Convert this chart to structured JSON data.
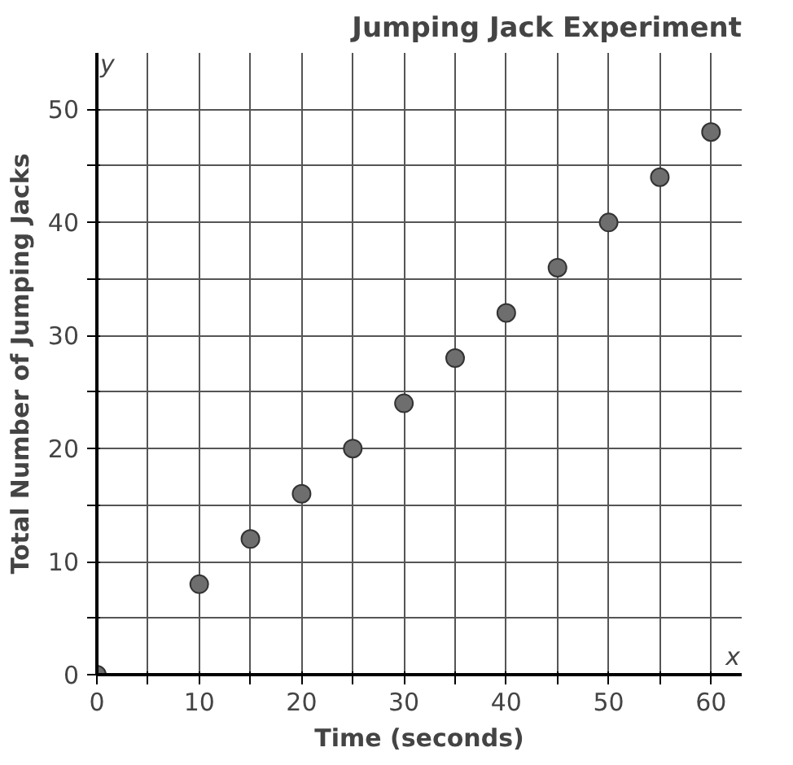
{
  "chart_data": {
    "type": "scatter",
    "title": "Jumping Jack Experiment",
    "xlabel": "Time (seconds)",
    "ylabel": "Total Number of Jumping Jacks",
    "x": [
      0,
      10,
      15,
      20,
      25,
      30,
      35,
      40,
      45,
      50,
      55,
      60
    ],
    "series": [
      {
        "color": "#6e6e6e",
        "values": [
          0,
          8,
          12,
          16,
          20,
          24,
          28,
          32,
          36,
          40,
          44,
          48
        ]
      }
    ],
    "xlim": [
      0,
      63
    ],
    "ylim": [
      0,
      55
    ],
    "xticks": [
      0,
      {
        "value": 5,
        "label": null
      },
      10,
      {
        "value": 15,
        "label": null
      },
      20,
      {
        "value": 25,
        "label": null
      },
      30,
      {
        "value": 35,
        "label": null
      },
      40,
      {
        "value": 45,
        "label": null
      },
      50,
      {
        "value": 55,
        "label": null
      },
      60
    ],
    "yticks": [
      0,
      {
        "value": 5,
        "label": null
      },
      10,
      {
        "value": 15,
        "label": null
      },
      20,
      {
        "value": 25,
        "label": null
      },
      30,
      {
        "value": 35,
        "label": null
      },
      40,
      {
        "value": 45,
        "label": null
      },
      50
    ],
    "grid": true,
    "marker": "circle",
    "annotations": [
      "x",
      "y"
    ]
  }
}
